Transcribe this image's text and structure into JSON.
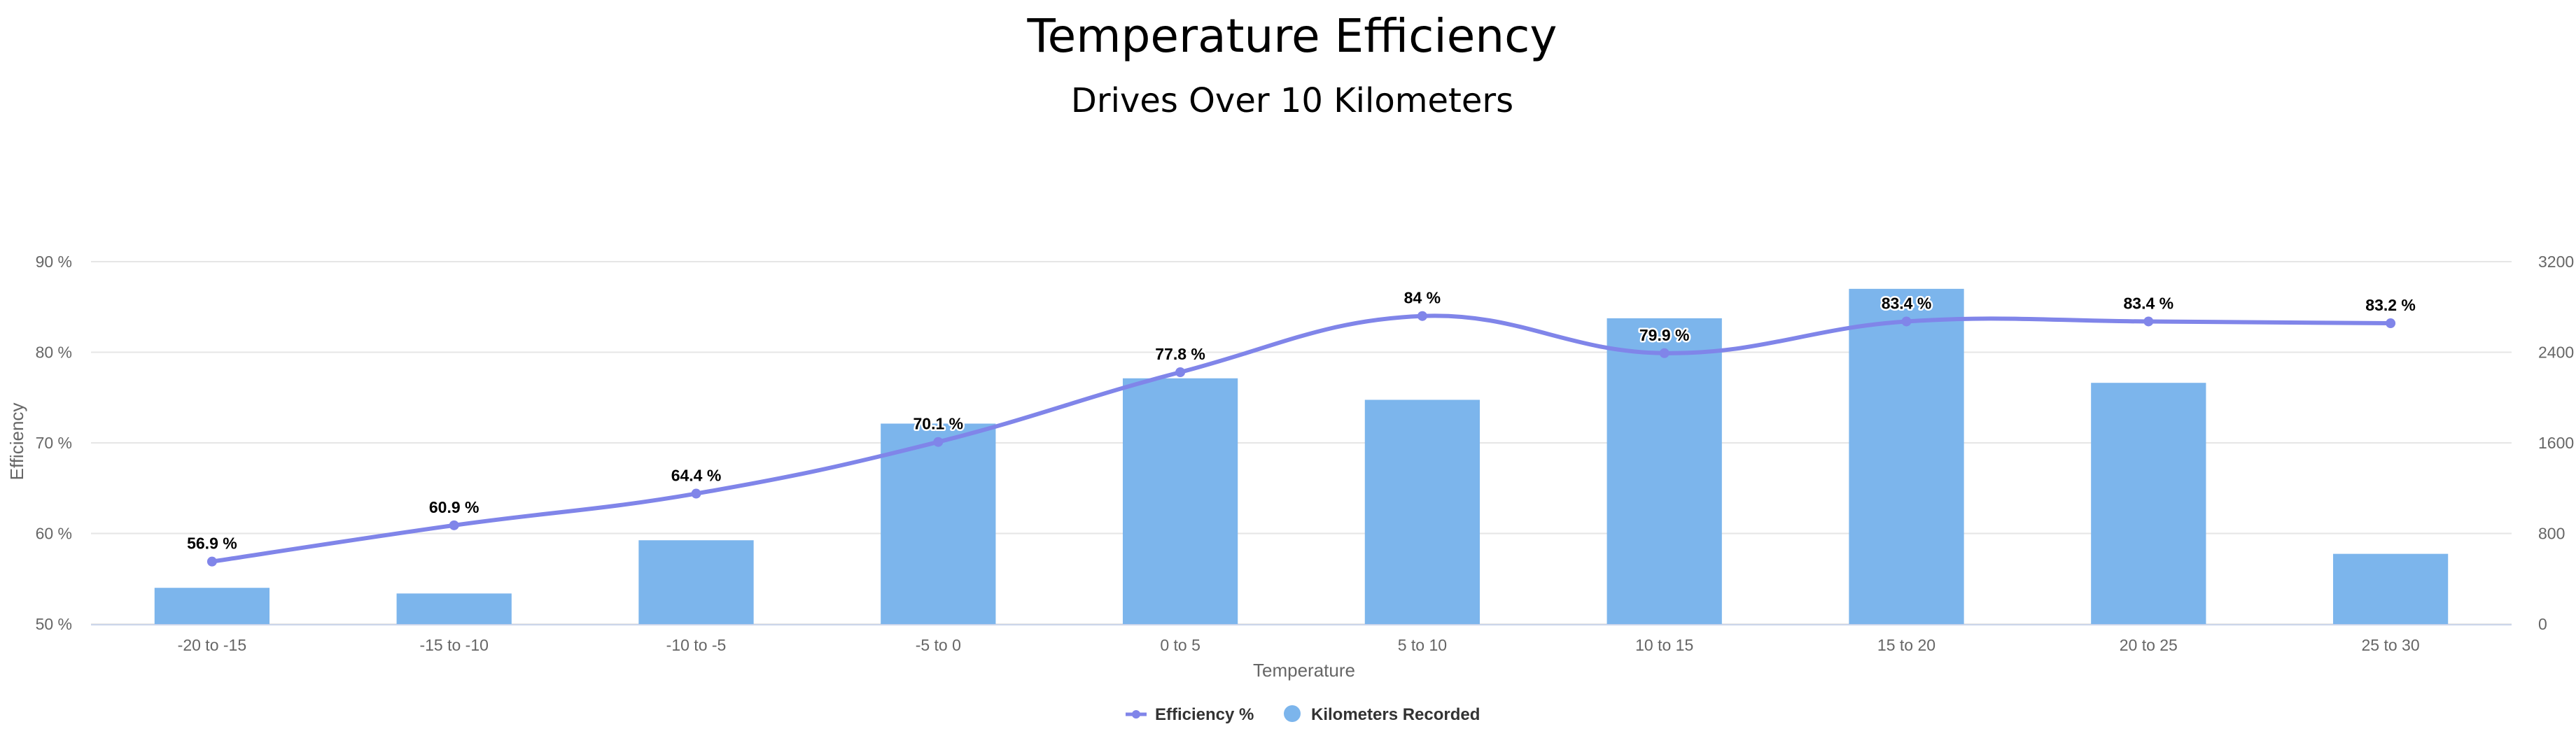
{
  "chart_data": {
    "type": "bar",
    "title": "Temperature Efficiency",
    "subtitle": "Drives Over 10 Kilometers",
    "xlabel": "Temperature",
    "ylabel": "Efficiency",
    "categories": [
      "-20 to -15",
      "-15 to -10",
      "-10 to -5",
      "-5 to 0",
      "0 to 5",
      "5 to 10",
      "10 to 15",
      "15 to 20",
      "20 to 25",
      "25 to 30"
    ],
    "y_left": {
      "min": 50,
      "max": 90,
      "ticks": [
        50,
        60,
        70,
        80,
        90
      ],
      "tick_labels": [
        "50 %",
        "60 %",
        "70 %",
        "80 %",
        "90 %"
      ]
    },
    "y_right": {
      "min": 0,
      "max": 3200,
      "ticks": [
        0,
        800,
        1600,
        2400,
        3200
      ],
      "tick_labels": [
        "0",
        "800",
        "1600",
        "2400",
        "3200"
      ]
    },
    "series": [
      {
        "name": "Kilometers Recorded",
        "type": "bar",
        "axis": "right",
        "color": "#7cb5ec",
        "values": [
          320,
          270,
          740,
          1770,
          2170,
          1980,
          2700,
          2960,
          2130,
          620
        ]
      },
      {
        "name": "Efficiency %",
        "type": "line",
        "axis": "left",
        "color": "#8085e9",
        "values": [
          56.9,
          60.9,
          64.4,
          70.1,
          77.8,
          84.0,
          79.9,
          83.4,
          83.4,
          83.2
        ],
        "labels": [
          "56.9 %",
          "60.9 %",
          "64.4 %",
          "70.1 %",
          "77.8 %",
          "84 %",
          "79.9 %",
          "83.4 %",
          "83.4 %",
          "83.2 %"
        ]
      }
    ],
    "grid": true,
    "legend_position": "bottom-center"
  }
}
